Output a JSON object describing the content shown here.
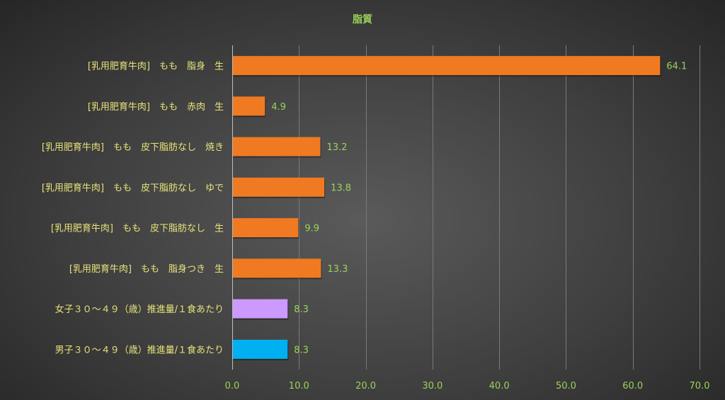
{
  "chart_data": {
    "type": "bar",
    "orientation": "horizontal",
    "title": "脂質",
    "categories": [
      "[乳用肥育牛肉]　もも　脂身　生",
      "[乳用肥育牛肉]　もも　赤肉　生",
      "[乳用肥育牛肉]　もも　皮下脂肪なし　焼き",
      "[乳用肥育牛肉]　もも　皮下脂肪なし　ゆで",
      "[乳用肥育牛肉]　もも　皮下脂肪なし　生",
      "[乳用肥育牛肉]　もも　脂身つき　生",
      "女子３０～４９（歳）推進量/１食あたり",
      "男子３０～４９（歳）推進量/１食あたり"
    ],
    "values": [
      64.1,
      4.9,
      13.2,
      13.8,
      9.9,
      13.3,
      8.3,
      8.3
    ],
    "value_labels": [
      "64.1",
      "4.9",
      "13.2",
      "13.8",
      "9.9",
      "13.3",
      "8.3",
      "8.3"
    ],
    "bar_colors": [
      "#f07a21",
      "#f07a21",
      "#f07a21",
      "#f07a21",
      "#f07a21",
      "#f07a21",
      "#cc99ff",
      "#00b0f0"
    ],
    "xlim": [
      0,
      70
    ],
    "xticks": [
      "0.0",
      "10.0",
      "20.0",
      "30.0",
      "40.0",
      "50.0",
      "60.0",
      "70.0"
    ],
    "grid": true,
    "legend": "none"
  }
}
